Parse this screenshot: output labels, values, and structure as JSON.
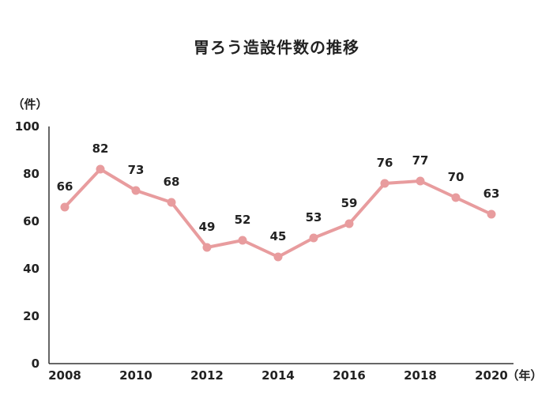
{
  "chart_data": {
    "type": "line",
    "title": "胃ろう造設件数の推移",
    "y_unit": "（件）",
    "x_unit": "（年）",
    "ylim": [
      0,
      100
    ],
    "y_ticks": [
      "0",
      "20",
      "40",
      "60",
      "80",
      "100"
    ],
    "x_ticks": [
      "2008",
      "2010",
      "2012",
      "2014",
      "2016",
      "2018",
      "2020"
    ],
    "grid": false,
    "line_color": "#e89c9e",
    "x": [
      2008,
      2009,
      2010,
      2011,
      2012,
      2013,
      2014,
      2015,
      2016,
      2017,
      2018,
      2019,
      2020
    ],
    "values": [
      66,
      82,
      73,
      68,
      49,
      52,
      45,
      53,
      59,
      76,
      77,
      70,
      63
    ]
  }
}
